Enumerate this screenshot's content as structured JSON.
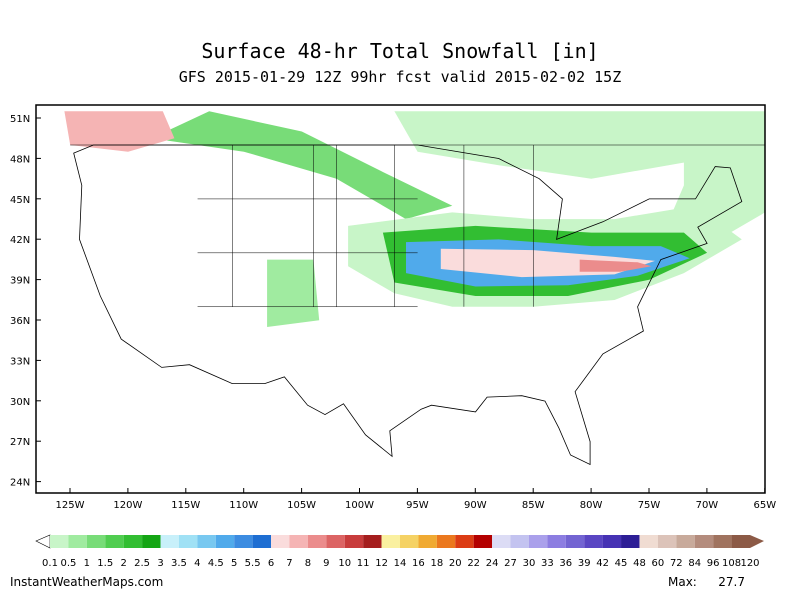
{
  "header": {
    "title": "Surface 48-hr Total Snowfall [in]",
    "subtitle": "GFS 2015-01-29 12Z 99hr fcst valid 2015-02-02 15Z"
  },
  "map": {
    "lat_labels": [
      "51N",
      "48N",
      "45N",
      "42N",
      "39N",
      "36N",
      "33N",
      "30N",
      "27N",
      "24N"
    ],
    "lon_labels": [
      "125W",
      "120W",
      "115W",
      "110W",
      "105W",
      "100W",
      "95W",
      "90W",
      "85W",
      "80W",
      "75W",
      "70W",
      "65W"
    ]
  },
  "colorbar": {
    "labels": [
      "0.1",
      "0.5",
      "1",
      "1.5",
      "2",
      "2.5",
      "3",
      "3.5",
      "4",
      "4.5",
      "5",
      "5.5",
      "6",
      "7",
      "8",
      "9",
      "10",
      "11",
      "12",
      "14",
      "16",
      "18",
      "20",
      "22",
      "24",
      "27",
      "30",
      "33",
      "36",
      "39",
      "42",
      "45",
      "48",
      "60",
      "72",
      "84",
      "96",
      "108",
      "120"
    ],
    "colors": [
      "#c8f5c8",
      "#a0eba0",
      "#78dc78",
      "#50cd50",
      "#32be32",
      "#14a514",
      "#c8f0fa",
      "#a0e1f5",
      "#78c8f0",
      "#50aaeb",
      "#3c8ce1",
      "#1e6ed2",
      "#fadcdc",
      "#f5b4b4",
      "#eb8c8c",
      "#dc6464",
      "#c83c3c",
      "#a51e1e",
      "#faf0a0",
      "#f5d264",
      "#f0aa32",
      "#eb781e",
      "#dc3c14",
      "#b40000",
      "#dcdcf5",
      "#c3c3f0",
      "#aaa0eb",
      "#8c7de1",
      "#7364d2",
      "#5a46c3",
      "#4632b4",
      "#2d1e96",
      "#f0dcd2",
      "#dcc3b9",
      "#c8aa9b",
      "#b48c7d",
      "#a0735f",
      "#8c5a46"
    ]
  },
  "footer": {
    "site": "InstantWeatherMaps.com",
    "max_label": "Max:",
    "max_value": "27.7"
  }
}
